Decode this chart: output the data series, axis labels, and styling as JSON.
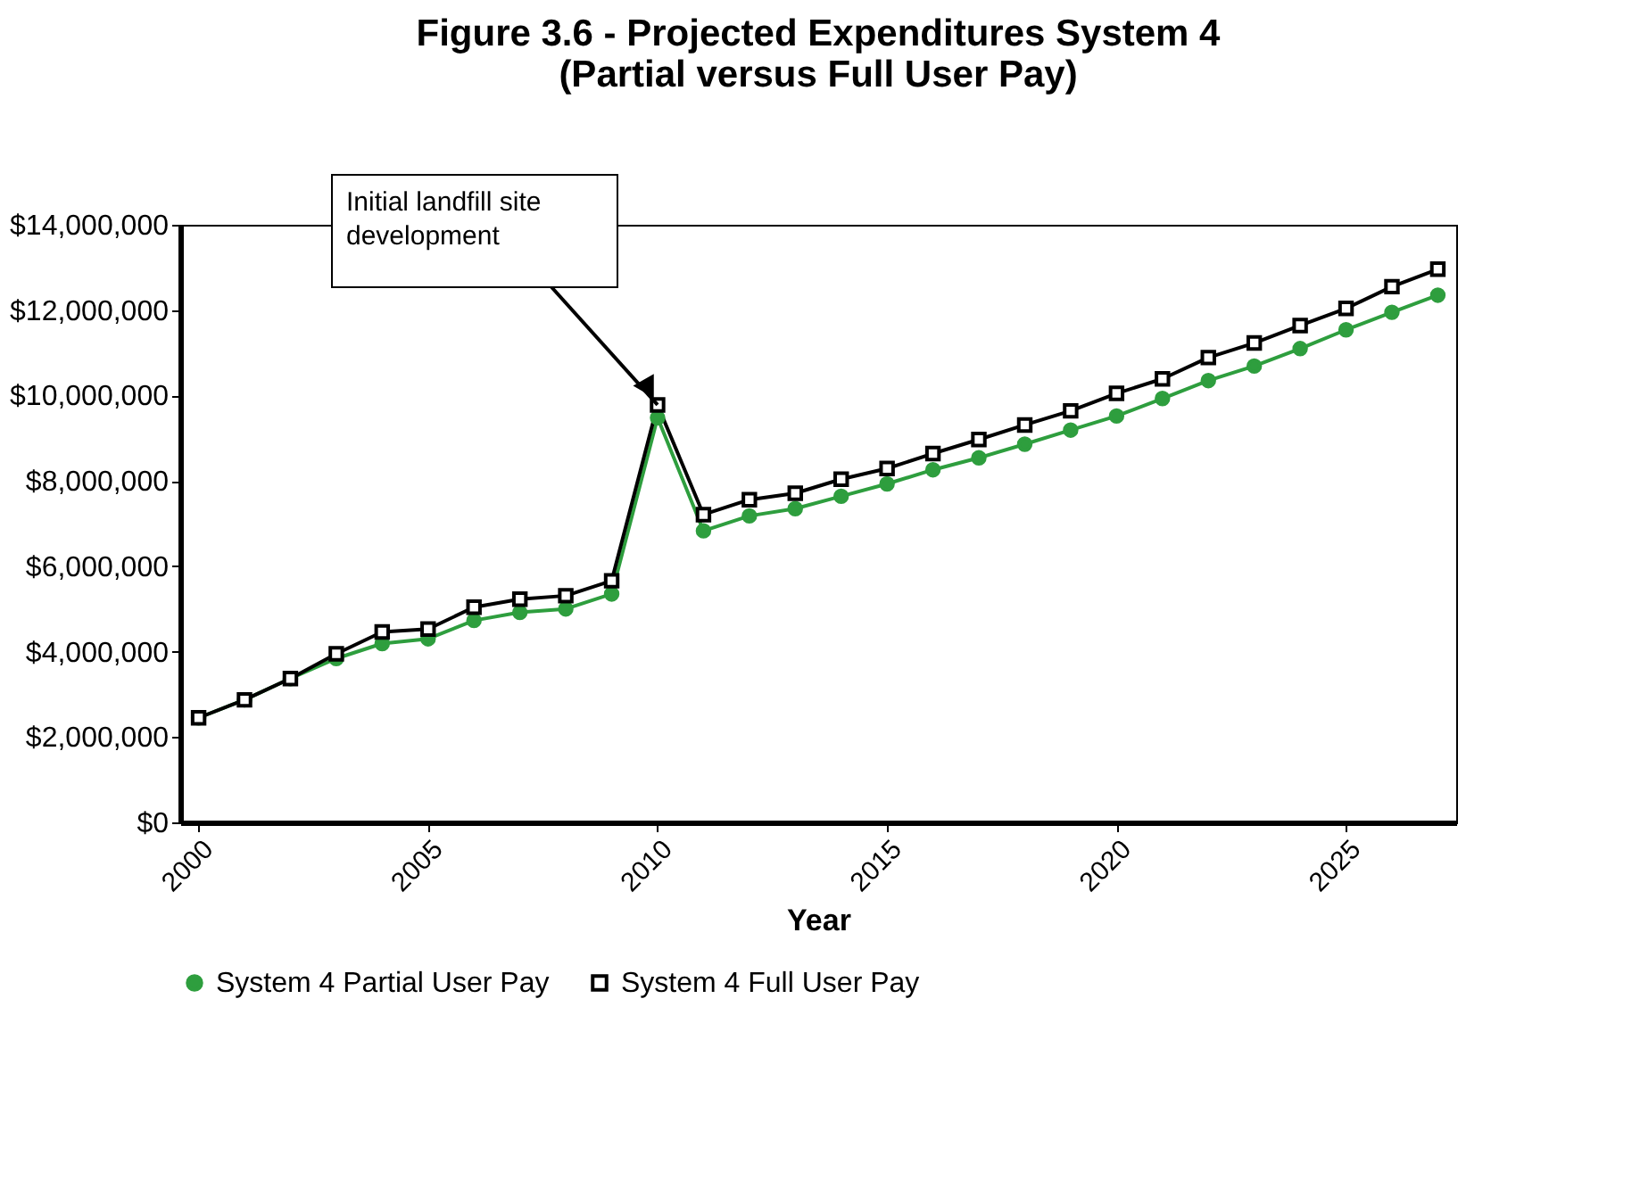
{
  "chart_data": {
    "type": "line",
    "title": "Figure 3.6 - Projected Expenditures System 4\n(Partial versus Full User Pay)",
    "xlabel": "Year",
    "x": [
      2000,
      2001,
      2002,
      2003,
      2004,
      2005,
      2006,
      2007,
      2008,
      2009,
      2010,
      2011,
      2012,
      2013,
      2014,
      2015,
      2016,
      2017,
      2018,
      2019,
      2020,
      2021,
      2022,
      2023,
      2024,
      2025,
      2026,
      2027
    ],
    "series": [
      {
        "name": "System 4 Partial User Pay",
        "color": "#2e9e3e",
        "marker": "circle",
        "values": [
          2450000,
          2870000,
          3370000,
          3840000,
          4190000,
          4300000,
          4730000,
          4920000,
          5000000,
          5350000,
          9480000,
          6830000,
          7180000,
          7350000,
          7640000,
          7930000,
          8260000,
          8540000,
          8860000,
          9190000,
          9520000,
          9930000,
          10350000,
          10690000,
          11100000,
          11540000,
          11950000,
          12350000
        ]
      },
      {
        "name": "System 4 Full User Pay",
        "color": "#000000",
        "marker": "square",
        "values": [
          2450000,
          2870000,
          3370000,
          3950000,
          4460000,
          4530000,
          5040000,
          5230000,
          5310000,
          5660000,
          9780000,
          7210000,
          7560000,
          7710000,
          8040000,
          8290000,
          8640000,
          8970000,
          9310000,
          9640000,
          10050000,
          10390000,
          10890000,
          11230000,
          11640000,
          12040000,
          12550000,
          12960000
        ]
      }
    ],
    "xlim": [
      1999.6,
      2027.4
    ],
    "xticks": [
      2000,
      2005,
      2010,
      2015,
      2020,
      2025
    ],
    "ylim": [
      0,
      14000000
    ],
    "yticks": [
      {
        "value": 0,
        "label": "$0"
      },
      {
        "value": 2000000,
        "label": "$2,000,000"
      },
      {
        "value": 4000000,
        "label": "$4,000,000"
      },
      {
        "value": 6000000,
        "label": "$6,000,000"
      },
      {
        "value": 8000000,
        "label": "$8,000,000"
      },
      {
        "value": 10000000,
        "label": "$10,000,000"
      },
      {
        "value": 12000000,
        "label": "$12,000,000"
      },
      {
        "value": 14000000,
        "label": "$14,000,000"
      }
    ],
    "annotations": [
      {
        "text": "Initial landfill site development",
        "x": 2010,
        "y": 9780000
      }
    ],
    "grid": false,
    "legend": "bottom",
    "line_style": "solid"
  }
}
